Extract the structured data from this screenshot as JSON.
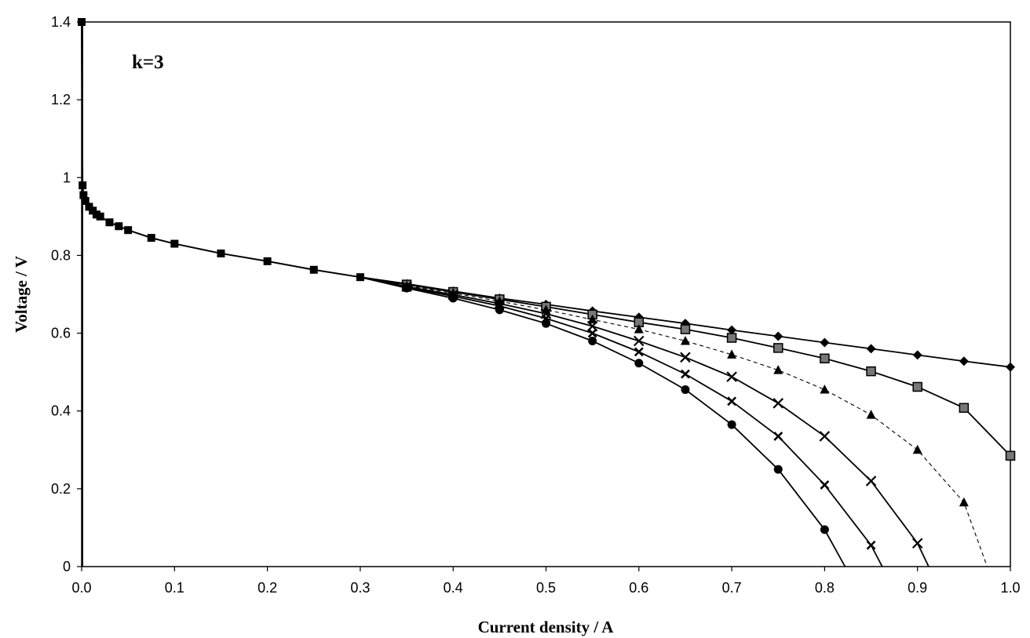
{
  "chart_data": {
    "type": "line",
    "title": "",
    "annotation": "k=3",
    "xlabel": "Current density / A",
    "ylabel": "Voltage / V",
    "xlim": [
      0,
      1
    ],
    "ylim": [
      0,
      1.4
    ],
    "x_ticks": [
      "0.0",
      "0.1",
      "0.2",
      "0.3",
      "0.4",
      "0.5",
      "0.6",
      "0.7",
      "0.8",
      "0.9",
      "1.0"
    ],
    "y_ticks": [
      "0",
      "0.2",
      "0.4",
      "0.6",
      "0.8",
      "1",
      "1.2",
      "1.4"
    ],
    "grid": false,
    "common": [
      [
        0,
        1.4
      ],
      [
        0.001,
        0.98
      ],
      [
        0.002,
        0.955
      ],
      [
        0.004,
        0.94
      ],
      [
        0.008,
        0.925
      ],
      [
        0.012,
        0.915
      ],
      [
        0.016,
        0.905
      ],
      [
        0.02,
        0.9
      ],
      [
        0.03,
        0.885
      ],
      [
        0.04,
        0.875
      ],
      [
        0.05,
        0.865
      ],
      [
        0.075,
        0.845
      ],
      [
        0.1,
        0.83
      ],
      [
        0.15,
        0.805
      ],
      [
        0.2,
        0.785
      ],
      [
        0.25,
        0.763
      ],
      [
        0.3,
        0.744
      ]
    ],
    "series": [
      {
        "marker": "diamond",
        "line": "solid",
        "points": [
          [
            0.35,
            0.727
          ],
          [
            0.4,
            0.708
          ],
          [
            0.45,
            0.69
          ],
          [
            0.5,
            0.674
          ],
          [
            0.55,
            0.657
          ],
          [
            0.6,
            0.641
          ],
          [
            0.65,
            0.625
          ],
          [
            0.7,
            0.608
          ],
          [
            0.75,
            0.592
          ],
          [
            0.8,
            0.576
          ],
          [
            0.85,
            0.56
          ],
          [
            0.9,
            0.544
          ],
          [
            0.95,
            0.528
          ],
          [
            1.0,
            0.513
          ]
        ]
      },
      {
        "marker": "square",
        "line": "solid",
        "points": [
          [
            0.35,
            0.725
          ],
          [
            0.4,
            0.706
          ],
          [
            0.45,
            0.687
          ],
          [
            0.5,
            0.668
          ],
          [
            0.55,
            0.648
          ],
          [
            0.6,
            0.628
          ],
          [
            0.65,
            0.61
          ],
          [
            0.7,
            0.588
          ],
          [
            0.75,
            0.562
          ],
          [
            0.8,
            0.535
          ],
          [
            0.85,
            0.502
          ],
          [
            0.9,
            0.462
          ],
          [
            0.95,
            0.408
          ],
          [
            1.0,
            0.285
          ]
        ]
      },
      {
        "marker": "triangle",
        "line": "dashed",
        "points": [
          [
            0.35,
            0.722
          ],
          [
            0.4,
            0.703
          ],
          [
            0.45,
            0.682
          ],
          [
            0.5,
            0.66
          ],
          [
            0.55,
            0.635
          ],
          [
            0.6,
            0.61
          ],
          [
            0.65,
            0.58
          ],
          [
            0.7,
            0.545
          ],
          [
            0.75,
            0.505
          ],
          [
            0.8,
            0.455
          ],
          [
            0.85,
            0.39
          ],
          [
            0.9,
            0.3
          ],
          [
            0.95,
            0.165
          ],
          [
            0.975,
            0
          ]
        ]
      },
      {
        "marker": "cross",
        "line": "solid",
        "points": [
          [
            0.35,
            0.72
          ],
          [
            0.4,
            0.699
          ],
          [
            0.45,
            0.676
          ],
          [
            0.5,
            0.65
          ],
          [
            0.55,
            0.618
          ],
          [
            0.6,
            0.58
          ],
          [
            0.65,
            0.538
          ],
          [
            0.7,
            0.488
          ],
          [
            0.75,
            0.42
          ],
          [
            0.8,
            0.335
          ],
          [
            0.85,
            0.22
          ],
          [
            0.9,
            0.06
          ],
          [
            0.912,
            0
          ]
        ]
      },
      {
        "marker": "x",
        "line": "solid",
        "points": [
          [
            0.35,
            0.718
          ],
          [
            0.4,
            0.695
          ],
          [
            0.45,
            0.67
          ],
          [
            0.5,
            0.638
          ],
          [
            0.55,
            0.6
          ],
          [
            0.6,
            0.552
          ],
          [
            0.65,
            0.495
          ],
          [
            0.7,
            0.425
          ],
          [
            0.75,
            0.335
          ],
          [
            0.8,
            0.21
          ],
          [
            0.85,
            0.055
          ],
          [
            0.862,
            0
          ]
        ]
      },
      {
        "marker": "circle",
        "line": "solid",
        "points": [
          [
            0.35,
            0.716
          ],
          [
            0.4,
            0.69
          ],
          [
            0.45,
            0.66
          ],
          [
            0.5,
            0.625
          ],
          [
            0.55,
            0.58
          ],
          [
            0.6,
            0.523
          ],
          [
            0.65,
            0.455
          ],
          [
            0.7,
            0.365
          ],
          [
            0.75,
            0.25
          ],
          [
            0.8,
            0.095
          ],
          [
            0.822,
            0
          ]
        ]
      }
    ]
  }
}
